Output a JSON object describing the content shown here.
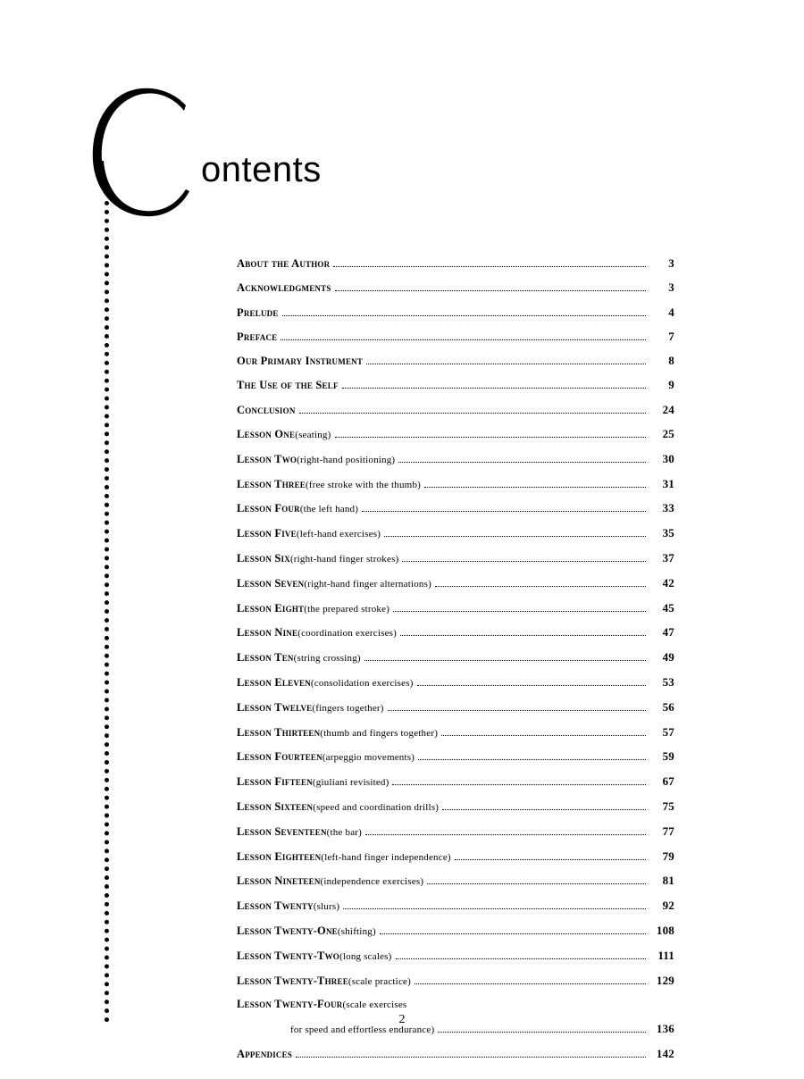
{
  "heading": {
    "rest": "ontents"
  },
  "page_number": "2",
  "toc": [
    {
      "title": "About the Author",
      "page": "3"
    },
    {
      "title": "Acknowledgments",
      "page": "3"
    },
    {
      "title": "Prelude",
      "page": "4"
    },
    {
      "title": "Preface",
      "page": "7"
    },
    {
      "title": "Our Primary Instrument",
      "page": "8"
    },
    {
      "title": "The Use of the Self",
      "page": "9"
    },
    {
      "title": "Conclusion",
      "page": "24"
    },
    {
      "title": "Lesson One",
      "sub": "(seating)",
      "page": "25"
    },
    {
      "title": "Lesson Two",
      "sub": "(right-hand positioning)",
      "page": "30"
    },
    {
      "title": "Lesson Three",
      "sub": "(free stroke with the thumb)",
      "page": "31"
    },
    {
      "title": "Lesson Four",
      "sub": "(the left hand)",
      "page": "33"
    },
    {
      "title": "Lesson Five",
      "sub": "(left-hand exercises)",
      "page": "35"
    },
    {
      "title": "Lesson Six",
      "sub": "(right-hand finger strokes)",
      "page": "37"
    },
    {
      "title": "Lesson Seven",
      "sub": "(right-hand finger alternations)",
      "page": "42"
    },
    {
      "title": "Lesson Eight",
      "sub": "(the prepared stroke)",
      "page": "45"
    },
    {
      "title": "Lesson Nine",
      "sub": "(coordination exercises)",
      "page": "47"
    },
    {
      "title": "Lesson Ten",
      "sub": "(string crossing)",
      "page": "49"
    },
    {
      "title": "Lesson Eleven",
      "sub": "(consolidation exercises)",
      "page": "53"
    },
    {
      "title": "Lesson Twelve",
      "sub": "(fingers together)",
      "page": "56"
    },
    {
      "title": "Lesson Thirteen",
      "sub": "(thumb and fingers together)",
      "page": "57"
    },
    {
      "title": "Lesson Fourteen",
      "sub": "(arpeggio movements)",
      "page": "59"
    },
    {
      "title": "Lesson Fifteen",
      "sub": "(giuliani revisited)",
      "page": "67"
    },
    {
      "title": "Lesson Sixteen",
      "sub": "(speed and coordination drills)",
      "page": "75"
    },
    {
      "title": "Lesson Seventeen",
      "sub": "(the bar)",
      "page": "77"
    },
    {
      "title": "Lesson Eighteen",
      "sub": "(left-hand finger independence)",
      "page": "79"
    },
    {
      "title": "Lesson Nineteen",
      "sub": "(independence exercises)",
      "page": "81"
    },
    {
      "title": "Lesson Twenty",
      "sub": "(slurs)",
      "page": "92"
    },
    {
      "title": "Lesson Twenty-One",
      "sub": "(shifting)",
      "page": "108"
    },
    {
      "title": "Lesson Twenty-Two",
      "sub": "(long scales)",
      "page": "111"
    },
    {
      "title": "Lesson Twenty-Three",
      "sub": "(scale practice)",
      "page": "129"
    },
    {
      "title": "Lesson Twenty-Four",
      "sub": "(scale exercises",
      "noLeader": true
    },
    {
      "cont": true,
      "sub": "for speed and effortless endurance)",
      "page": "136"
    },
    {
      "title": "Appendices",
      "page": "142"
    }
  ]
}
